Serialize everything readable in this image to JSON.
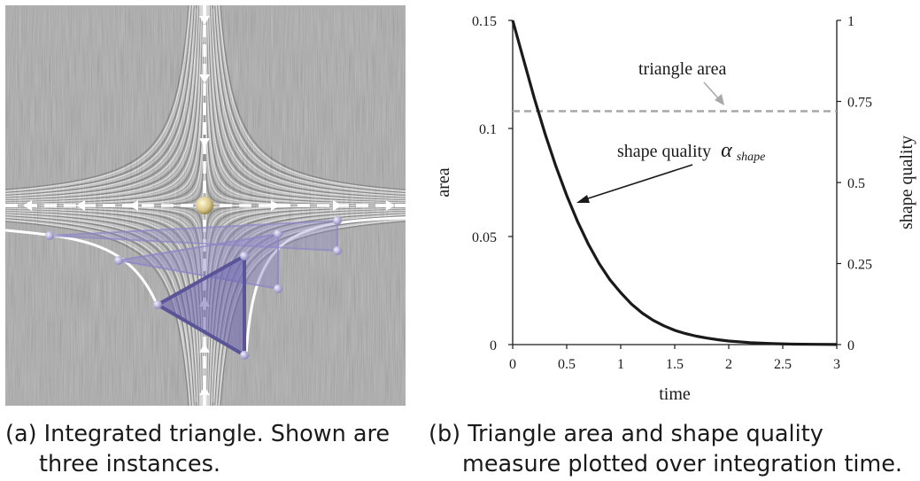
{
  "panel_a": {
    "caption_label": "(a)",
    "caption_line1": "Integrated triangle. Shown are",
    "caption_line2": "three instances."
  },
  "panel_b": {
    "caption_label": "(b)",
    "caption_line1": "Triangle area and shape quality",
    "caption_line2": "measure plotted over integration time."
  },
  "colors": {
    "quality_curve": "#1a1a1a",
    "area_line": "#a8a8a8",
    "triangle": "#5a5498",
    "triangle_fill": "#8c86c8"
  },
  "chart_data": {
    "type": "line",
    "xlabel": "time",
    "ylabel": "area",
    "y2label": "shape quality",
    "xlim": [
      0,
      3
    ],
    "ylim": [
      0,
      0.15
    ],
    "y2lim": [
      0,
      1
    ],
    "xticks": [
      "0",
      "0.5",
      "1",
      "1.5",
      "2",
      "2.5",
      "3"
    ],
    "yticks": [
      "0",
      "0.05",
      "0.1",
      "0.15"
    ],
    "y2ticks": [
      "0",
      "0.25",
      "0.5",
      "0.75",
      "1"
    ],
    "series": [
      {
        "name": "triangle area",
        "axis": "left",
        "style": "dashed",
        "x": [
          0,
          3
        ],
        "values": [
          0.108,
          0.108
        ]
      },
      {
        "name": "shape quality",
        "axis": "right",
        "style": "solid",
        "x": [
          0,
          0.1,
          0.2,
          0.3,
          0.4,
          0.5,
          0.6,
          0.7,
          0.8,
          0.9,
          1.0,
          1.1,
          1.2,
          1.3,
          1.4,
          1.5,
          1.6,
          1.7,
          1.8,
          1.9,
          2.0,
          2.2,
          2.4,
          2.6,
          2.8,
          3.0
        ],
        "values": [
          1.0,
          0.88,
          0.76,
          0.65,
          0.55,
          0.46,
          0.38,
          0.31,
          0.25,
          0.2,
          0.16,
          0.125,
          0.097,
          0.075,
          0.058,
          0.044,
          0.034,
          0.026,
          0.02,
          0.015,
          0.011,
          0.006,
          0.003,
          0.0015,
          0.0007,
          0.0003
        ]
      }
    ],
    "annotations": {
      "area_label": "triangle area",
      "quality_label": "shape quality",
      "quality_symbol": "α",
      "quality_subscript": "shape"
    }
  }
}
